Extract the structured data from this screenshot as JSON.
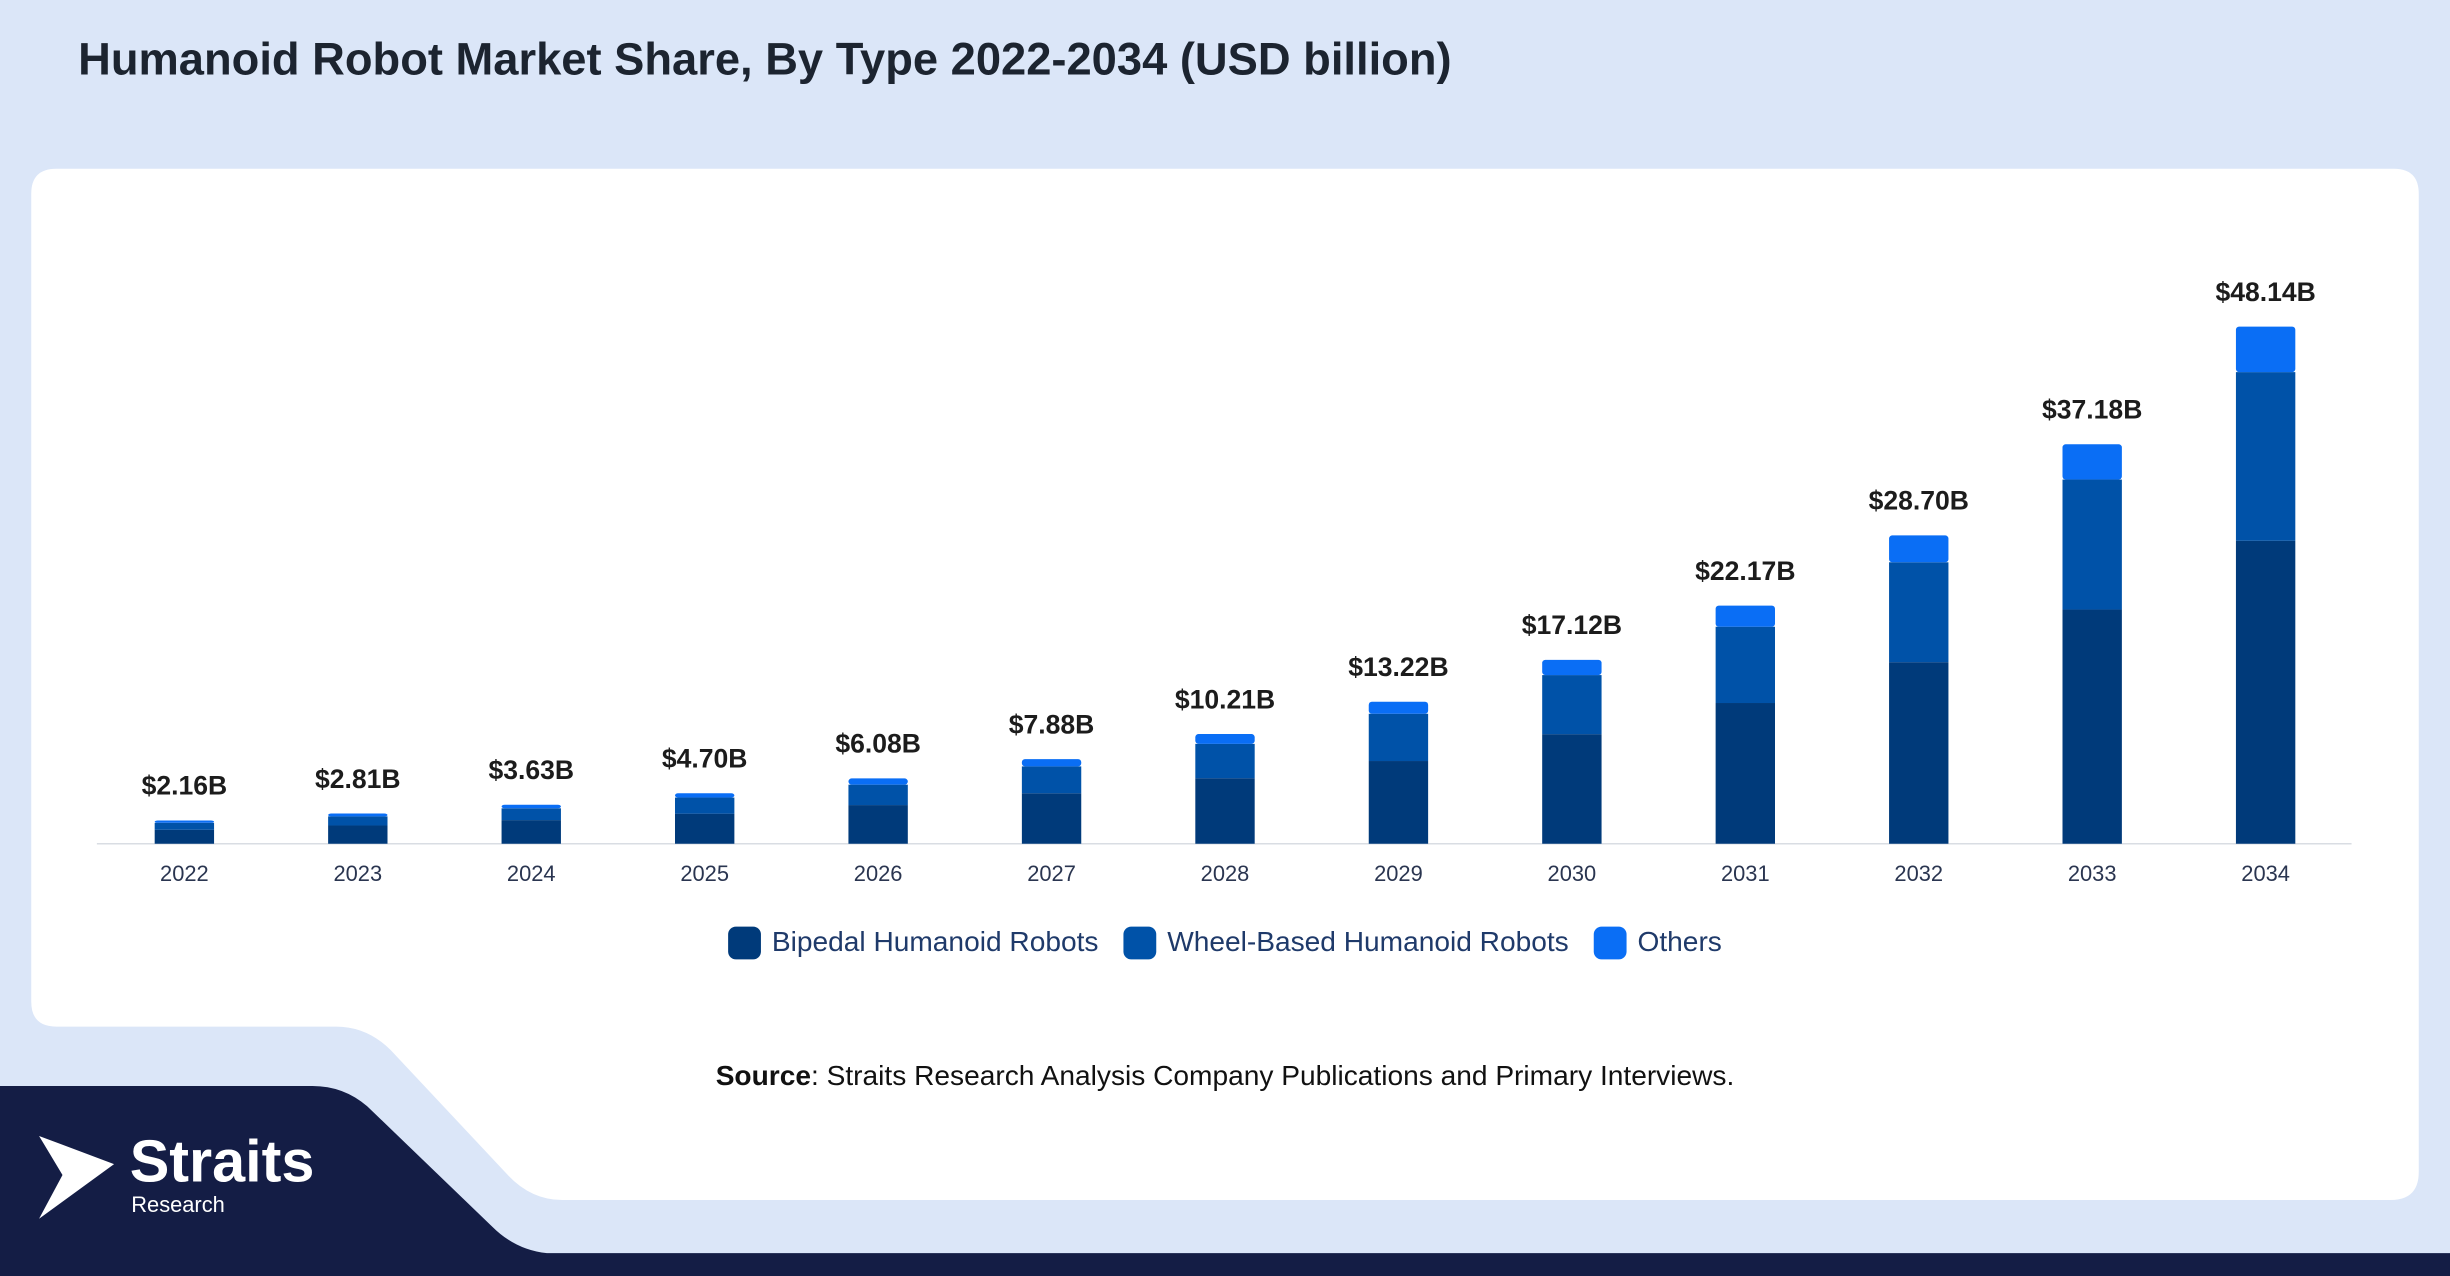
{
  "chart_data": {
    "type": "bar",
    "stacked": true,
    "title": "Humanoid Robot Market Share, By Type 2022-2034 (USD billion)",
    "categories": [
      "2022",
      "2023",
      "2024",
      "2025",
      "2026",
      "2027",
      "2028",
      "2029",
      "2030",
      "2031",
      "2032",
      "2033",
      "2034"
    ],
    "series": [
      {
        "name": "Bipedal Humanoid Robots",
        "color": "#003a7a",
        "values": [
          1.3,
          1.7,
          2.2,
          2.8,
          3.6,
          4.7,
          6.1,
          7.7,
          10.2,
          13.1,
          16.9,
          21.8,
          28.2
        ]
      },
      {
        "name": "Wheel-Based Humanoid Robots",
        "color": "#0052a8",
        "values": [
          0.65,
          0.85,
          1.1,
          1.5,
          1.9,
          2.5,
          3.2,
          4.4,
          5.5,
          7.1,
          9.3,
          12.1,
          15.7
        ]
      },
      {
        "name": "Others",
        "color": "#0a6ef5",
        "values": [
          0.21,
          0.26,
          0.33,
          0.4,
          0.58,
          0.68,
          0.91,
          1.12,
          1.42,
          1.97,
          2.5,
          3.28,
          4.24
        ]
      }
    ],
    "totals": {
      "values": [
        2.16,
        2.81,
        3.63,
        4.7,
        6.08,
        7.88,
        10.21,
        13.22,
        17.12,
        22.17,
        28.7,
        37.18,
        48.14
      ],
      "value_labels": [
        "$2.16B",
        "$2.81B",
        "$3.63B",
        "$4.70B",
        "$6.08B",
        "$7.88B",
        "$10.21B",
        "$13.22B",
        "$17.12B",
        "$22.17B",
        "$28.70B",
        "$37.18B",
        "$48.14B"
      ]
    }
  },
  "source": {
    "label": "Source",
    "text": ": Straits Research Analysis Company Publications and Primary Interviews."
  },
  "logo": {
    "name": "Straits",
    "sub": "Research"
  }
}
